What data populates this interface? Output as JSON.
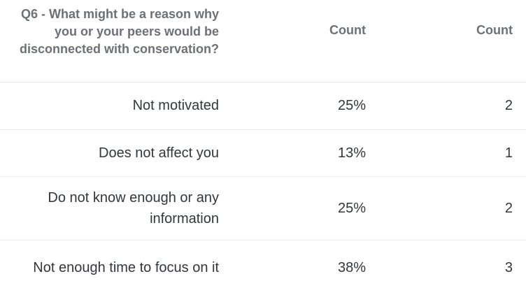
{
  "colors": {
    "header_text": "#6d7075",
    "body_text": "#33363a",
    "divider": "#eaeaec",
    "background": "#ffffff"
  },
  "chart_data": {
    "type": "table",
    "title": "Q6 - What might be a reason why you or your peers would be disconnected with conservation?",
    "columns": [
      "Q6 - What might be a reason why you or your peers would be disconnected with conservation?",
      "Count",
      "Count"
    ],
    "rows": [
      {
        "label": "Not motivated",
        "percent": "25%",
        "percent_value": 25,
        "count": 2
      },
      {
        "label": "Does not affect you",
        "percent": "13%",
        "percent_value": 13,
        "count": 1
      },
      {
        "label": "Do not know enough or any information",
        "percent": "25%",
        "percent_value": 25,
        "count": 2
      },
      {
        "label": "Not enough time to focus on it",
        "percent": "38%",
        "percent_value": 38,
        "count": 3
      }
    ],
    "layout": {
      "label_column_align": "right",
      "value_columns_align": "right",
      "grid": "horizontal-dividers-only"
    }
  }
}
